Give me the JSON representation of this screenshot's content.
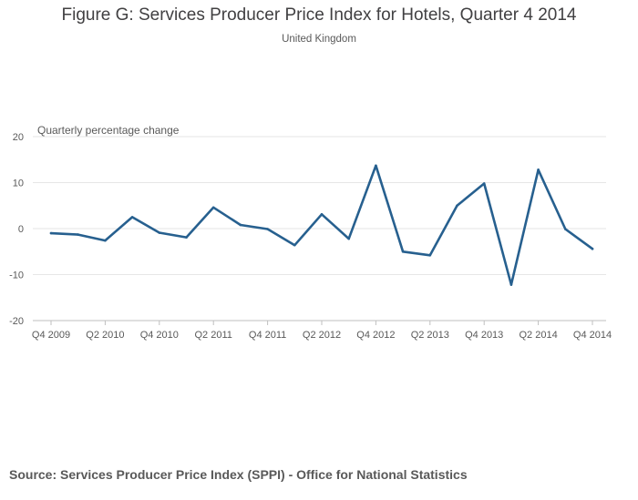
{
  "header": {
    "title": "Figure G: Services Producer Price Index for Hotels, Quarter 4 2014",
    "subtitle": "United Kingdom"
  },
  "footer": {
    "source": "Source: Services Producer Price Index (SPPI) - Office for National Statistics"
  },
  "colors": {
    "line": "#27608f",
    "grid": "#e6e6e6",
    "axis": "#bfbfbf",
    "text": "#595959"
  },
  "chart_data": {
    "type": "line",
    "title": "Figure G: Services Producer Price Index for Hotels, Quarter 4 2014",
    "subtitle": "United Kingdom",
    "ylabel": "Quarterly percentage change",
    "xlabel": "",
    "ylim": [
      -20,
      20
    ],
    "yticks": [
      20,
      10,
      0,
      -10,
      -20
    ],
    "grid": true,
    "x": [
      "Q4 2009",
      "Q1 2010",
      "Q2 2010",
      "Q3 2010",
      "Q4 2010",
      "Q1 2011",
      "Q2 2011",
      "Q3 2011",
      "Q4 2011",
      "Q1 2012",
      "Q2 2012",
      "Q3 2012",
      "Q4 2012",
      "Q1 2013",
      "Q2 2013",
      "Q3 2013",
      "Q4 2013",
      "Q1 2014",
      "Q2 2014",
      "Q3 2014",
      "Q4 2014"
    ],
    "xtick_labels": [
      "Q4 2009",
      "Q2 2010",
      "Q4 2010",
      "Q2 2011",
      "Q4 2011",
      "Q2 2012",
      "Q4 2012",
      "Q2 2013",
      "Q4 2013",
      "Q2 2014",
      "Q4 2014"
    ],
    "series": [
      {
        "values": [
          -1.0,
          -1.3,
          -2.6,
          2.5,
          -0.9,
          -1.9,
          4.6,
          0.8,
          -0.1,
          -3.6,
          3.1,
          -2.2,
          13.7,
          -5.0,
          -5.8,
          5.0,
          9.8,
          -12.2,
          12.8,
          -0.1,
          -4.4
        ]
      }
    ]
  }
}
